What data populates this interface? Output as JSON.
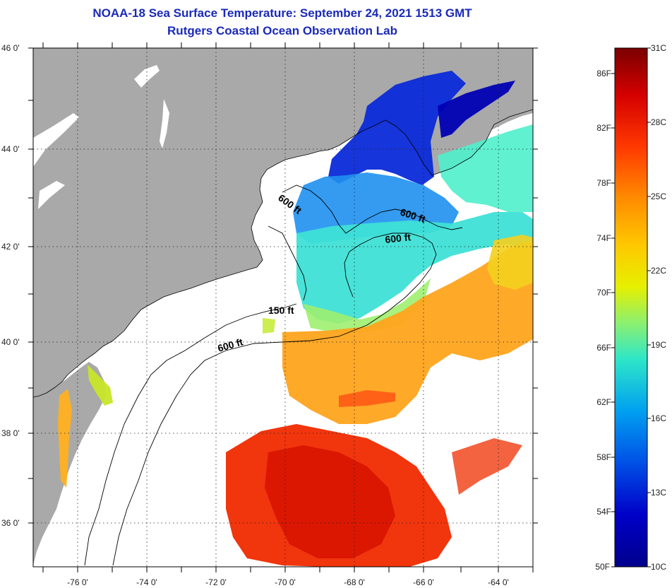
{
  "title": {
    "line1": "NOAA-18 Sea Surface Temperature:  September 24, 2021 1513 GMT",
    "line2": "Rutgers Coastal Ocean Observation Lab"
  },
  "map": {
    "lat_labels": [
      "46 0'",
      "44 0'",
      "42 0'",
      "40 0'",
      "38 0'",
      "36 0'"
    ],
    "lon_labels": [
      "-76 0'",
      "-74 0'",
      "-72 0'",
      "-70 0'",
      "-68 0'",
      "-66 0'",
      "-64 0'"
    ],
    "contour_labels": {
      "gulf_maine_west": "600 ft",
      "gulf_maine_east": "600 ft",
      "georges_bank": "600 ft",
      "nantucket_shoals": "150 ft",
      "shelf_break": "600 ft"
    },
    "colors": {
      "land": "#a9a9a9",
      "no_data": "#ffffff",
      "grid": "#222222"
    }
  },
  "colorbar": {
    "fahrenheit_labels": [
      "86F",
      "82F",
      "78F",
      "74F",
      "70F",
      "66F",
      "62F",
      "58F",
      "54F",
      "50F"
    ],
    "celsius_labels": [
      "31C",
      "28C",
      "25C",
      "22C",
      "19C",
      "16C",
      "13C",
      "10C"
    ],
    "gradient_colors": [
      "#7a0000",
      "#d40000",
      "#ff3800",
      "#ff8c00",
      "#ffc800",
      "#e6f000",
      "#8cf070",
      "#2ee6c8",
      "#00a0f0",
      "#0050e6",
      "#0000c8",
      "#00008c"
    ]
  }
}
